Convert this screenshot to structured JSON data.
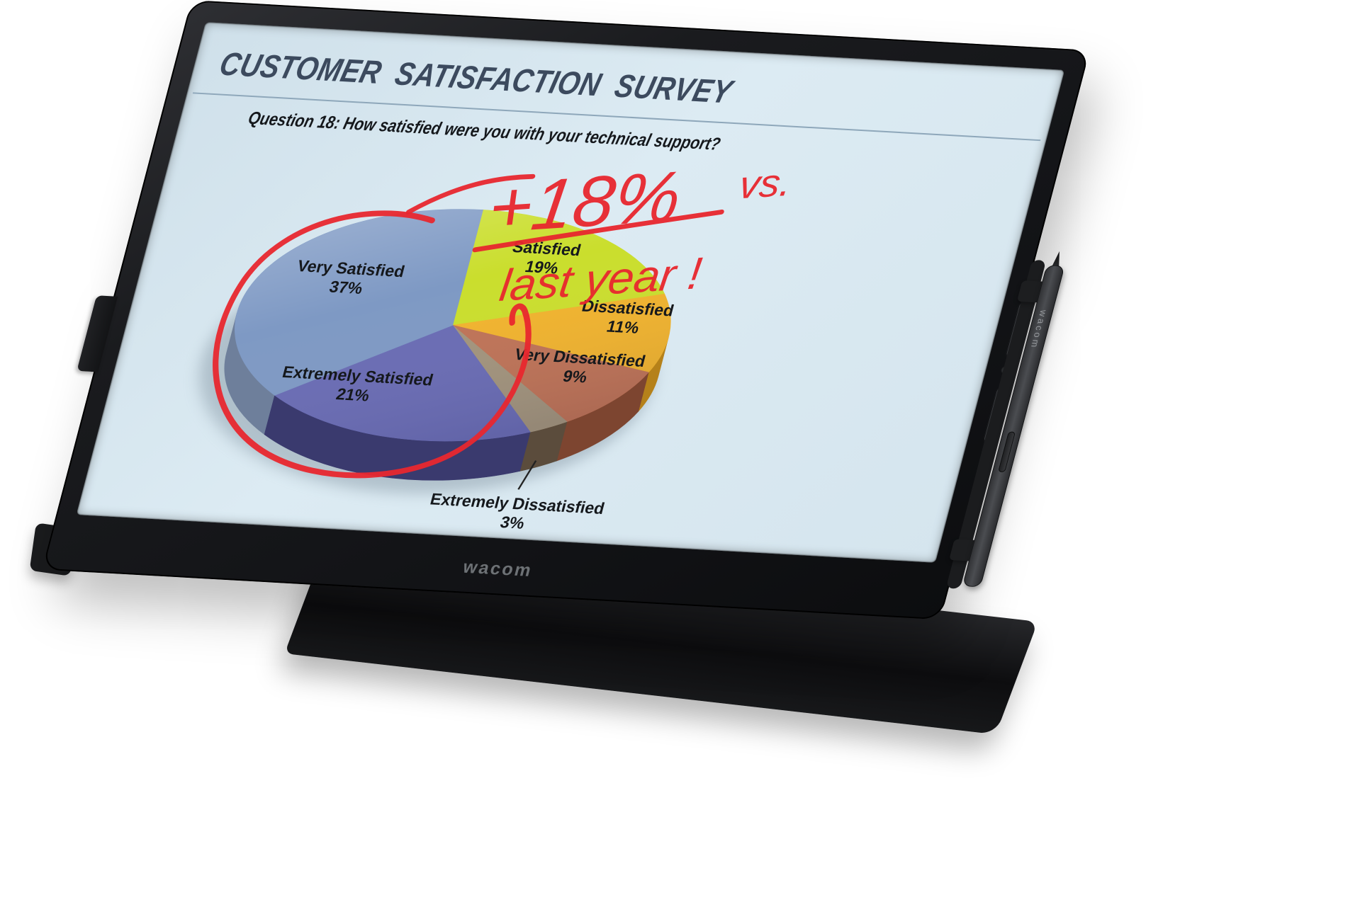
{
  "device": {
    "brand_logo": "wacom",
    "pen_brand_label": "wacom"
  },
  "slide": {
    "title": "CUSTOMER SATISFACTION SURVEY",
    "question": "Question 18: How satisfied were you with your technical support?",
    "background": "#d7e6ef",
    "title_color": "#3c4a5e",
    "annotation": {
      "line1": "+18%",
      "line2": "vs.",
      "line3": "last year !",
      "ink_color": "#e8272e"
    }
  },
  "chart_data": {
    "type": "pie",
    "title": "",
    "unit": "%",
    "effect": "3d",
    "start_angle_deg": 0,
    "direction": "clockwise",
    "legend": "none",
    "slices": [
      {
        "label": "Satisfied",
        "value": 19,
        "color": "#cade2d",
        "side_color": "#97a81c",
        "label_r": 0.6
      },
      {
        "label": "Dissatisfied",
        "value": 11,
        "color": "#f1b32d",
        "side_color": "#b5811a",
        "label_r": 0.78
      },
      {
        "label": "Very Dissatisfied",
        "value": 9,
        "color": "#bf7356",
        "side_color": "#7d4530",
        "label_r": 0.75
      },
      {
        "label": "Extremely Dissatisfied",
        "value": 3,
        "color": "#a3947c",
        "side_color": "#5b4c3c",
        "label_outside": true
      },
      {
        "label": "Extremely Satisfied",
        "value": 21,
        "color": "#6a6cb4",
        "side_color": "#3a3a6e",
        "label_r": 0.6,
        "label_dx": -85,
        "label_dy": 15
      },
      {
        "label": "Very Satisfied",
        "value": 37,
        "color": "#7e99c4",
        "side_color": "#6e7f9b",
        "label_r": 0.58
      }
    ]
  }
}
